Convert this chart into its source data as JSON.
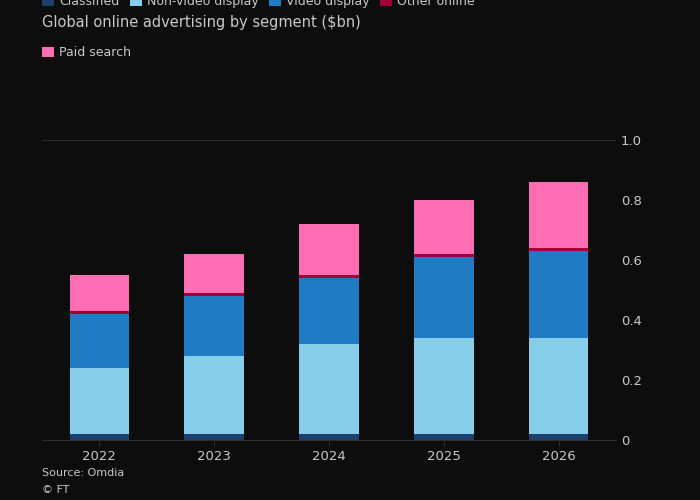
{
  "title": "Global online advertising by segment ($bn)",
  "years": [
    2022,
    2023,
    2024,
    2025,
    2026
  ],
  "segments": {
    "Classified": {
      "values": [
        0.02,
        0.02,
        0.02,
        0.02,
        0.02
      ],
      "color": "#1c3f6e"
    },
    "Non-video display": {
      "values": [
        0.22,
        0.26,
        0.3,
        0.32,
        0.32
      ],
      "color": "#87ceeb"
    },
    "Video display": {
      "values": [
        0.18,
        0.2,
        0.22,
        0.27,
        0.29
      ],
      "color": "#1e7bc4"
    },
    "Other online": {
      "values": [
        0.01,
        0.01,
        0.01,
        0.01,
        0.01
      ],
      "color": "#a0003a"
    },
    "Paid search": {
      "values": [
        0.12,
        0.13,
        0.17,
        0.18,
        0.22
      ],
      "color": "#ff6eb4"
    }
  },
  "ylim": [
    0,
    1.0
  ],
  "yticks": [
    0,
    0.2,
    0.4,
    0.6,
    0.8,
    1.0
  ],
  "source_text": "Source: Omdia",
  "ft_text": "© FT",
  "background_color": "#0d0d0d",
  "text_color": "#c8c8c8",
  "grid_color": "#2e2e2e",
  "bar_width": 0.52
}
